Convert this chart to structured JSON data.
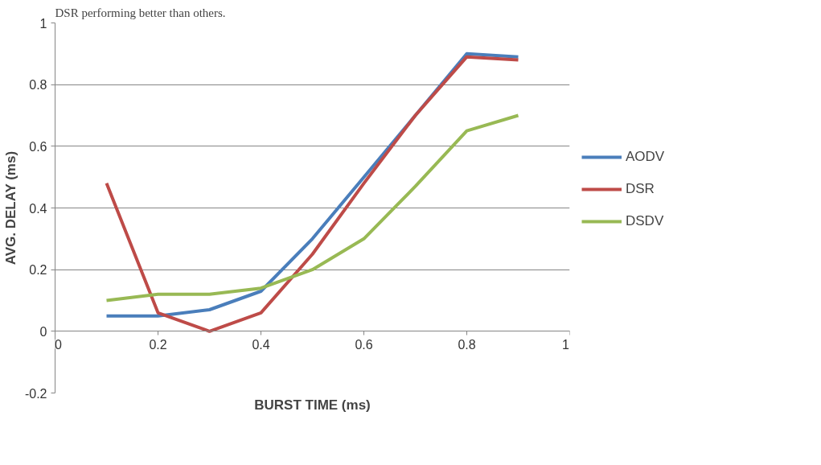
{
  "chart_data": {
    "type": "line",
    "xlabel": "BURST TIME (ms)",
    "ylabel": "AVG. DELAY (ms)",
    "annotations": [
      "DSR performing better than others."
    ],
    "x": [
      0.1,
      0.2,
      0.3,
      0.4,
      0.5,
      0.6,
      0.7,
      0.8,
      0.9
    ],
    "series": [
      {
        "name": "AODV",
        "color": "#4a7ebb",
        "values": [
          0.05,
          0.05,
          0.07,
          0.13,
          0.3,
          0.5,
          0.7,
          0.9,
          0.89
        ]
      },
      {
        "name": "DSR",
        "color": "#be4b48",
        "values": [
          0.48,
          0.06,
          0.0,
          0.06,
          0.25,
          0.48,
          0.7,
          0.89,
          0.88
        ]
      },
      {
        "name": "DSDV",
        "color": "#98b954",
        "values": [
          0.1,
          0.12,
          0.12,
          0.14,
          0.2,
          0.3,
          0.47,
          0.65,
          0.7
        ]
      }
    ],
    "xlim": [
      0,
      1
    ],
    "xticks": [
      0,
      0.2,
      0.4,
      0.6,
      0.8,
      1
    ],
    "ylim": [
      -0.2,
      1
    ],
    "yticks": [
      -0.2,
      0,
      0.2,
      0.4,
      0.6,
      0.8,
      1
    ],
    "grid": "y",
    "legend": "right",
    "marker": "none",
    "line_style": "solid"
  }
}
